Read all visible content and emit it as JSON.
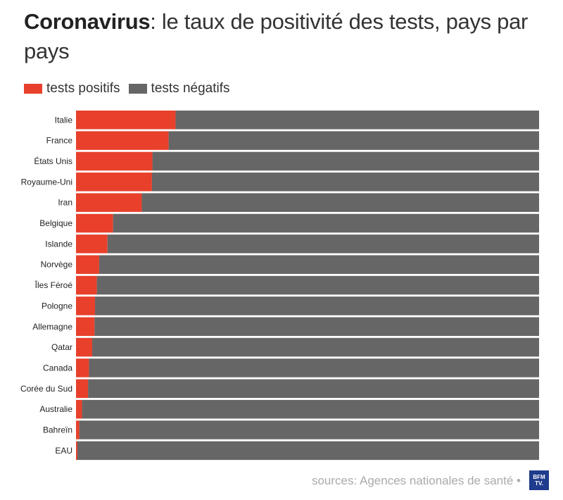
{
  "title": {
    "bold": "Coronavirus",
    "rest": ": le taux de positivité des tests, pays par pays"
  },
  "legend": [
    {
      "label": "tests positifs",
      "color": "#e8402b"
    },
    {
      "label": "tests négatifs",
      "color": "#666666"
    }
  ],
  "source": "sources: Agences nationales de santé •",
  "logo": "BFM TV.",
  "chart_data": {
    "type": "bar",
    "orientation": "horizontal",
    "stacked": true,
    "percent_stacked": true,
    "categories": [
      "Italie",
      "France",
      "États Unis",
      "Royaume-Uni",
      "Iran",
      "Belgique",
      "Islande",
      "Norvège",
      "Îles Féroé",
      "Pologne",
      "Allemagne",
      "Qatar",
      "Canada",
      "Corée du Sud",
      "Australie",
      "Bahreïn",
      "EAU"
    ],
    "series": [
      {
        "name": "tests positifs",
        "color": "#e8402b",
        "values": [
          21.5,
          20.0,
          16.5,
          16.4,
          14.2,
          8.0,
          6.8,
          5.0,
          4.5,
          4.1,
          4.0,
          3.5,
          2.8,
          2.6,
          1.3,
          0.7,
          0.3
        ]
      },
      {
        "name": "tests négatifs",
        "color": "#666666",
        "values": [
          78.5,
          80.0,
          83.5,
          83.6,
          85.8,
          92.0,
          93.2,
          95.0,
          95.5,
          95.9,
          96.0,
          96.5,
          97.2,
          97.4,
          98.7,
          99.3,
          99.7
        ]
      }
    ],
    "xlim": [
      0,
      100
    ],
    "grid": false,
    "legend_position": "top-left"
  }
}
